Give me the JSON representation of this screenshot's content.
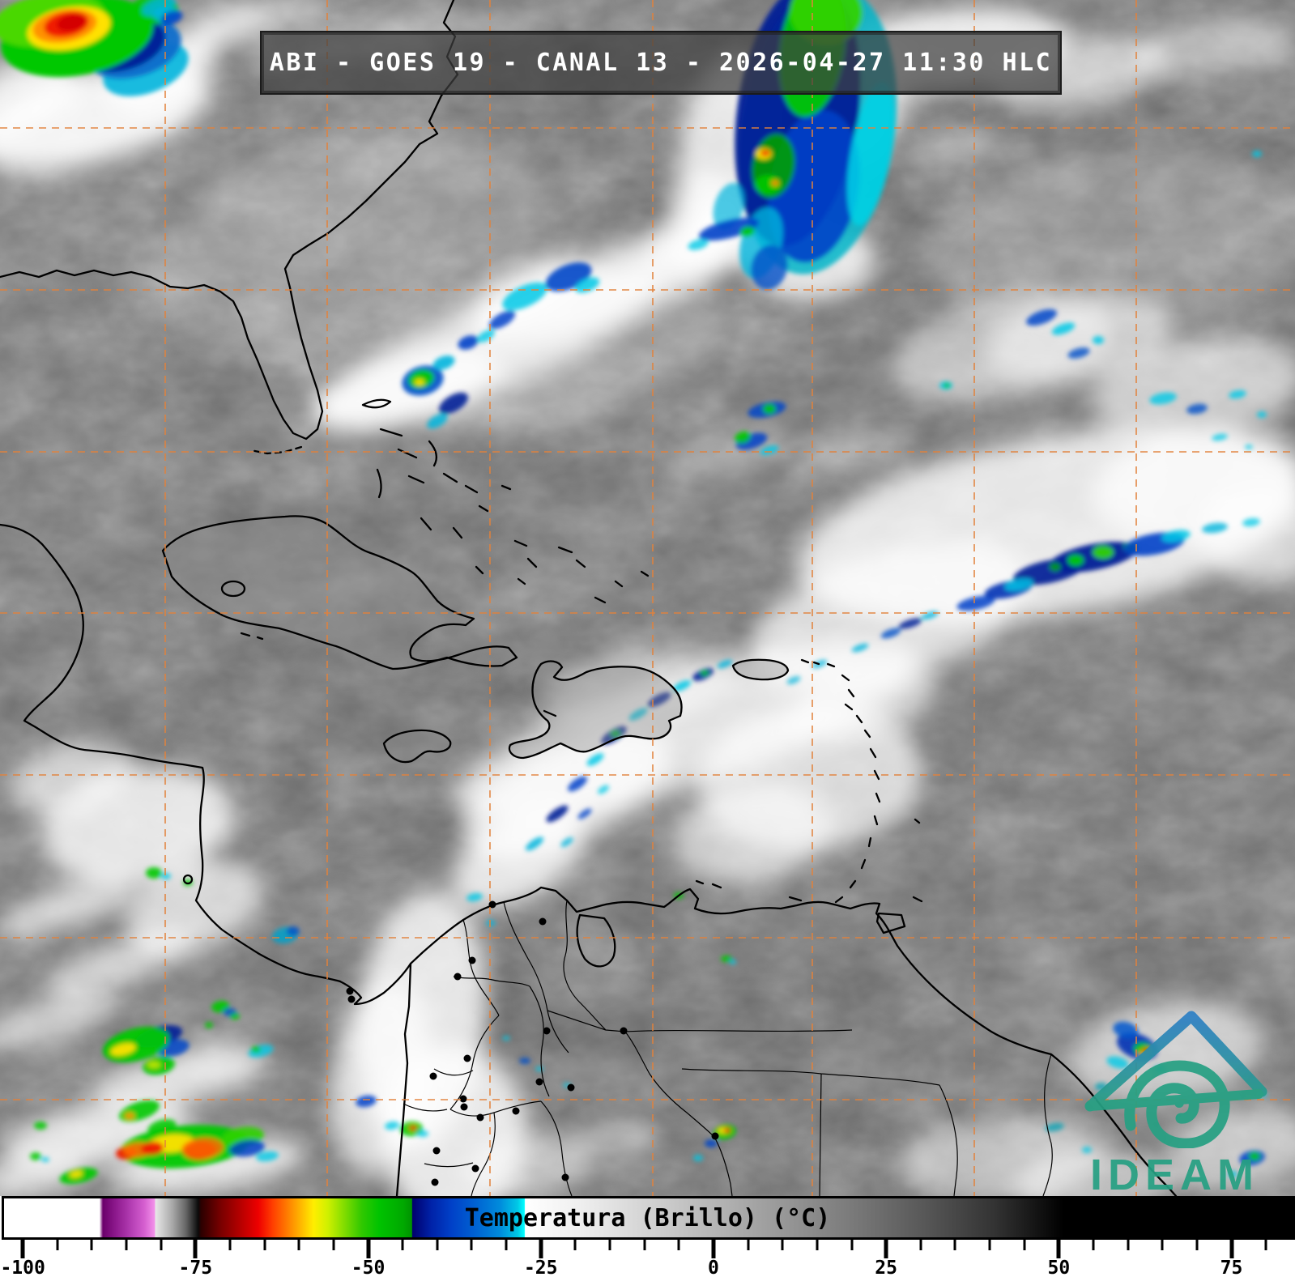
{
  "header": {
    "title": "ABI - GOES 19 - CANAL 13 - 2026-04-27 11:30 HLC"
  },
  "colorbar": {
    "title": "Temperatura (Brillo) (°C)",
    "unit": "°C",
    "range_min": -103.3,
    "range_max": 84.2,
    "major_ticks": [
      -100,
      -75,
      -50,
      -25,
      0,
      25,
      50,
      75
    ],
    "tick_labels": [
      "-100",
      "-75",
      "-50",
      "-25",
      "0",
      "25",
      "50",
      "75"
    ],
    "minor_tick_step": 5,
    "stops": [
      {
        "t": -103.3,
        "c": "#ffffff"
      },
      {
        "t": -89.5,
        "c": "#ffffff"
      },
      {
        "t": -89.0,
        "c": "#6b006b"
      },
      {
        "t": -87.0,
        "c": "#8f1b8f"
      },
      {
        "t": -85.0,
        "c": "#b23cb2"
      },
      {
        "t": -83.0,
        "c": "#d55fd0"
      },
      {
        "t": -81.5,
        "c": "#f393ea"
      },
      {
        "t": -81.4,
        "c": "#e8e8e8"
      },
      {
        "t": -79.0,
        "c": "#aaaaaa"
      },
      {
        "t": -77.0,
        "c": "#666666"
      },
      {
        "t": -75.2,
        "c": "#0a0a0a"
      },
      {
        "t": -74.8,
        "c": "#2b0000"
      },
      {
        "t": -72.0,
        "c": "#770000"
      },
      {
        "t": -69.0,
        "c": "#b80000"
      },
      {
        "t": -66.5,
        "c": "#ee0000"
      },
      {
        "t": -64.5,
        "c": "#ff3c00"
      },
      {
        "t": -62.5,
        "c": "#ff7700"
      },
      {
        "t": -60.5,
        "c": "#ffb300"
      },
      {
        "t": -58.5,
        "c": "#ffee00"
      },
      {
        "t": -56.5,
        "c": "#d0f000"
      },
      {
        "t": -54.0,
        "c": "#7fdc00"
      },
      {
        "t": -51.5,
        "c": "#2fc800"
      },
      {
        "t": -49.0,
        "c": "#00c300"
      },
      {
        "t": -45.5,
        "c": "#00a800"
      },
      {
        "t": -44.3,
        "c": "#009300"
      },
      {
        "t": -44.2,
        "c": "#00006e"
      },
      {
        "t": -41.5,
        "c": "#0022a8"
      },
      {
        "t": -38.5,
        "c": "#0041c8"
      },
      {
        "t": -35.0,
        "c": "#0063d2"
      },
      {
        "t": -31.5,
        "c": "#008cdc"
      },
      {
        "t": -29.0,
        "c": "#00c8e6"
      },
      {
        "t": -28.0,
        "c": "#00ffff"
      },
      {
        "t": -27.9,
        "c": "#ffffff"
      },
      {
        "t": -20.0,
        "c": "#efefef"
      },
      {
        "t": -10.0,
        "c": "#d2d2d2"
      },
      {
        "t": 0.0,
        "c": "#b4b4b4"
      },
      {
        "t": 10.0,
        "c": "#969696"
      },
      {
        "t": 20.0,
        "c": "#787878"
      },
      {
        "t": 30.0,
        "c": "#575757"
      },
      {
        "t": 40.0,
        "c": "#333333"
      },
      {
        "t": 50.0,
        "c": "#000000"
      },
      {
        "t": 84.2,
        "c": "#000000"
      }
    ]
  },
  "logo": {
    "text": "IDEAM",
    "teal": "#26a083",
    "blue": "#2e7fc4"
  },
  "map": {
    "graticule_color": "#e2823c",
    "coastline_color": "#000000",
    "background_gray": "#7b7b7b",
    "satellite": "GOES 19",
    "instrument": "ABI",
    "channel": "CANAL 13",
    "datetime": "2026-04-27 11:30 HLC"
  }
}
